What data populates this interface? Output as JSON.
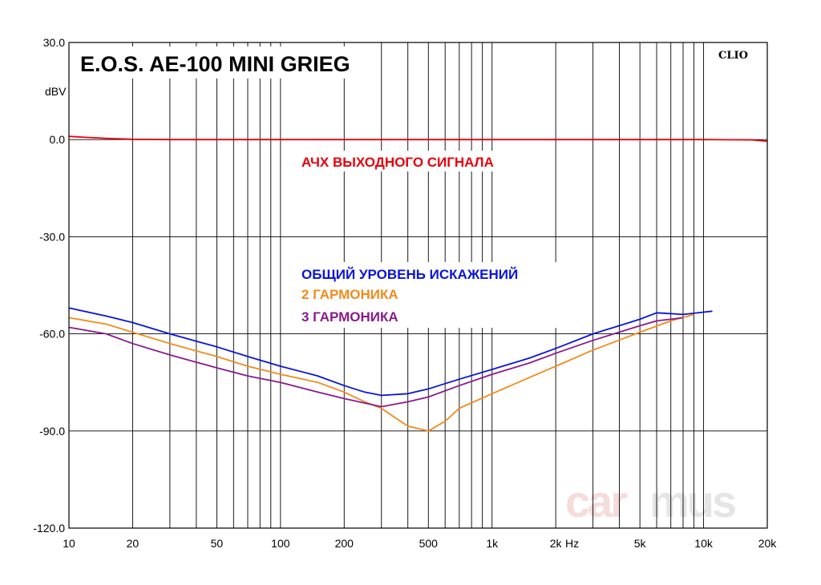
{
  "chart_data": {
    "type": "line",
    "title": "E.O.S. AE-100 MINI GRIEG",
    "brand": "CLIO",
    "watermark_left": "car",
    "watermark_right": "mus",
    "x_unit": "Hz",
    "ylabel": "dBV",
    "xscale": "log",
    "xlim": [
      10,
      20000
    ],
    "ylim": [
      -120,
      30
    ],
    "grid": true,
    "x_ticks": [
      {
        "value": 10,
        "label": "10"
      },
      {
        "value": 20,
        "label": "20"
      },
      {
        "value": 50,
        "label": "50"
      },
      {
        "value": 100,
        "label": "100"
      },
      {
        "value": 200,
        "label": "200"
      },
      {
        "value": 500,
        "label": "500"
      },
      {
        "value": 1000,
        "label": "1k"
      },
      {
        "value": 2000,
        "label": "2k"
      },
      {
        "value": 5000,
        "label": "5k"
      },
      {
        "value": 10000,
        "label": "10k"
      },
      {
        "value": 20000,
        "label": "20k"
      }
    ],
    "y_ticks": [
      {
        "value": 30,
        "label": "30.0"
      },
      {
        "value": 0,
        "label": "0.0"
      },
      {
        "value": -30,
        "label": "-30.0"
      },
      {
        "value": -60,
        "label": "-60.0"
      },
      {
        "value": -90,
        "label": "-90.0"
      },
      {
        "value": -120,
        "label": "-120.0"
      }
    ],
    "series": [
      {
        "name": "АЧХ ВЫХОДНОГО СИГНАЛА",
        "color": "#e8000b",
        "points": [
          [
            10,
            1.0
          ],
          [
            12,
            0.7
          ],
          [
            15,
            0.4
          ],
          [
            20,
            0.1
          ],
          [
            30,
            0.0
          ],
          [
            100,
            0.0
          ],
          [
            1000,
            0.0
          ],
          [
            10000,
            0.0
          ],
          [
            17000,
            -0.1
          ],
          [
            20000,
            -0.5
          ]
        ]
      },
      {
        "name": "ОБЩИЙ УРОВЕНЬ ИСКАЖЕНИЙ",
        "color": "#0a14d8",
        "points": [
          [
            10,
            -52
          ],
          [
            15,
            -54.5
          ],
          [
            20,
            -56.5
          ],
          [
            30,
            -60
          ],
          [
            50,
            -64
          ],
          [
            70,
            -67
          ],
          [
            100,
            -70
          ],
          [
            150,
            -73
          ],
          [
            200,
            -76
          ],
          [
            250,
            -78
          ],
          [
            300,
            -79
          ],
          [
            400,
            -78.5
          ],
          [
            500,
            -77
          ],
          [
            700,
            -74
          ],
          [
            1000,
            -71
          ],
          [
            1500,
            -67.5
          ],
          [
            2000,
            -64.5
          ],
          [
            3000,
            -60
          ],
          [
            5000,
            -55.5
          ],
          [
            6000,
            -53.5
          ],
          [
            8000,
            -54
          ],
          [
            10000,
            -53.3
          ],
          [
            11000,
            -53
          ]
        ]
      },
      {
        "name": "2 ГАРМОНИКА",
        "color": "#f28b1c",
        "points": [
          [
            10,
            -55
          ],
          [
            15,
            -57
          ],
          [
            20,
            -59.5
          ],
          [
            30,
            -63
          ],
          [
            50,
            -67
          ],
          [
            70,
            -70
          ],
          [
            100,
            -72.5
          ],
          [
            150,
            -75
          ],
          [
            200,
            -78
          ],
          [
            250,
            -81
          ],
          [
            300,
            -83
          ],
          [
            350,
            -86
          ],
          [
            400,
            -88.5
          ],
          [
            500,
            -90
          ],
          [
            600,
            -87
          ],
          [
            700,
            -83
          ],
          [
            1000,
            -78.5
          ],
          [
            1500,
            -73.5
          ],
          [
            2000,
            -70
          ],
          [
            3000,
            -65
          ],
          [
            5000,
            -59.5
          ],
          [
            7000,
            -56
          ],
          [
            9000,
            -54
          ]
        ]
      },
      {
        "name": "3 ГАРМОНИКА",
        "color": "#8a1a8c",
        "points": [
          [
            10,
            -58
          ],
          [
            15,
            -60
          ],
          [
            20,
            -63
          ],
          [
            30,
            -66.5
          ],
          [
            50,
            -70.5
          ],
          [
            70,
            -73
          ],
          [
            100,
            -75
          ],
          [
            150,
            -78
          ],
          [
            200,
            -80
          ],
          [
            300,
            -82.5
          ],
          [
            400,
            -81
          ],
          [
            500,
            -79.5
          ],
          [
            700,
            -76
          ],
          [
            1000,
            -72.5
          ],
          [
            1500,
            -69
          ],
          [
            2000,
            -66
          ],
          [
            3000,
            -62
          ],
          [
            5000,
            -57.5
          ],
          [
            6000,
            -56
          ],
          [
            7000,
            -55.5
          ],
          [
            8000,
            -55
          ]
        ]
      }
    ]
  }
}
